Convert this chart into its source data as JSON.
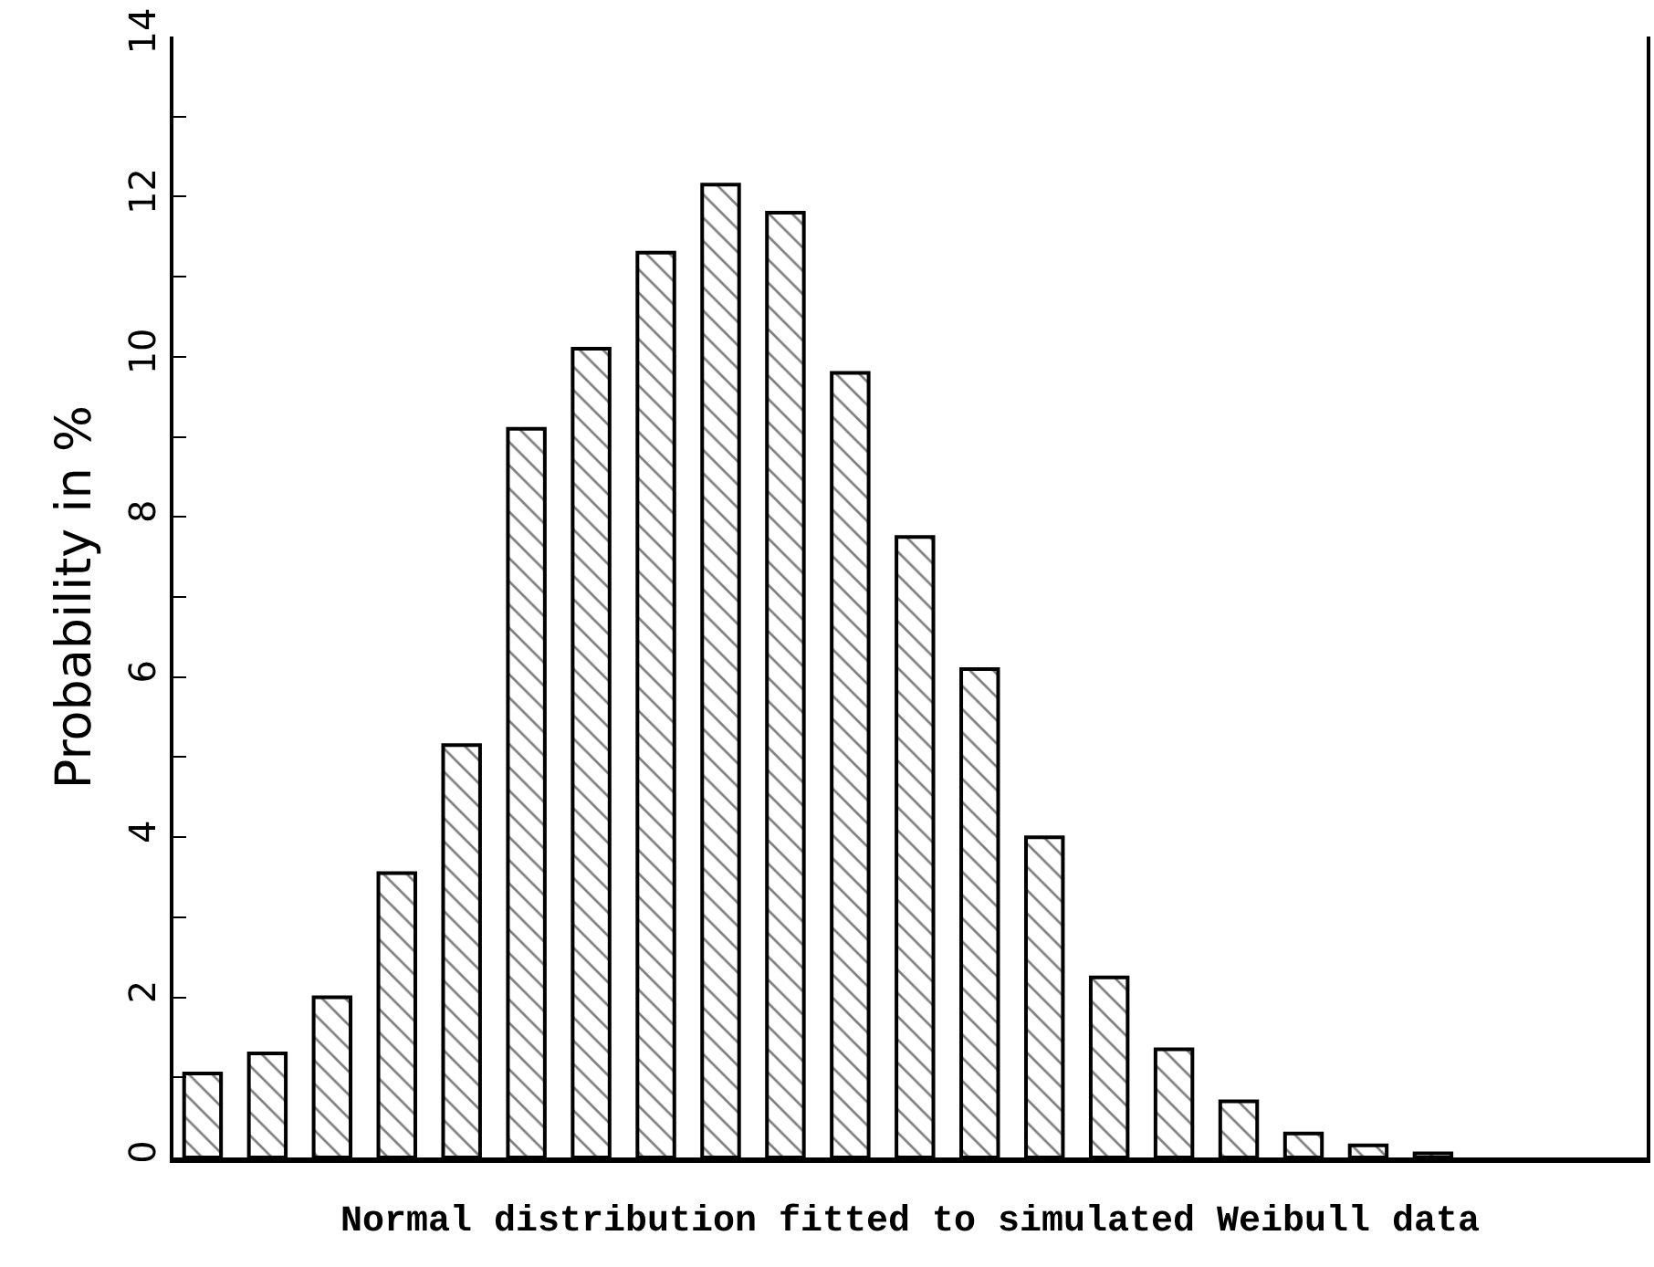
{
  "chart_data": {
    "type": "bar",
    "xlabel": "Normal distribution fitted to simulated Weibull data",
    "ylabel": "Probability in %",
    "categories": [
      null,
      null,
      null,
      null,
      null,
      null,
      null,
      null,
      null,
      null,
      null,
      null,
      null,
      null,
      null,
      null,
      null,
      null,
      null,
      null
    ],
    "values": [
      1.05,
      1.3,
      2.0,
      3.55,
      5.15,
      9.1,
      10.1,
      11.3,
      12.15,
      11.8,
      9.8,
      7.75,
      6.1,
      4.0,
      2.25,
      1.35,
      0.7,
      0.3,
      0.15,
      0.05
    ],
    "color": "#000000",
    "ylim": [
      0,
      14
    ],
    "yticks": [
      0,
      {
        "value": 1,
        "label": null
      },
      2,
      {
        "value": 3,
        "label": null
      },
      4,
      {
        "value": 5,
        "label": null
      },
      6,
      {
        "value": 7,
        "label": null
      },
      8,
      {
        "value": 9,
        "label": null
      },
      10,
      {
        "value": 11,
        "label": null
      },
      12,
      {
        "value": 13,
        "label": null
      },
      14
    ]
  }
}
